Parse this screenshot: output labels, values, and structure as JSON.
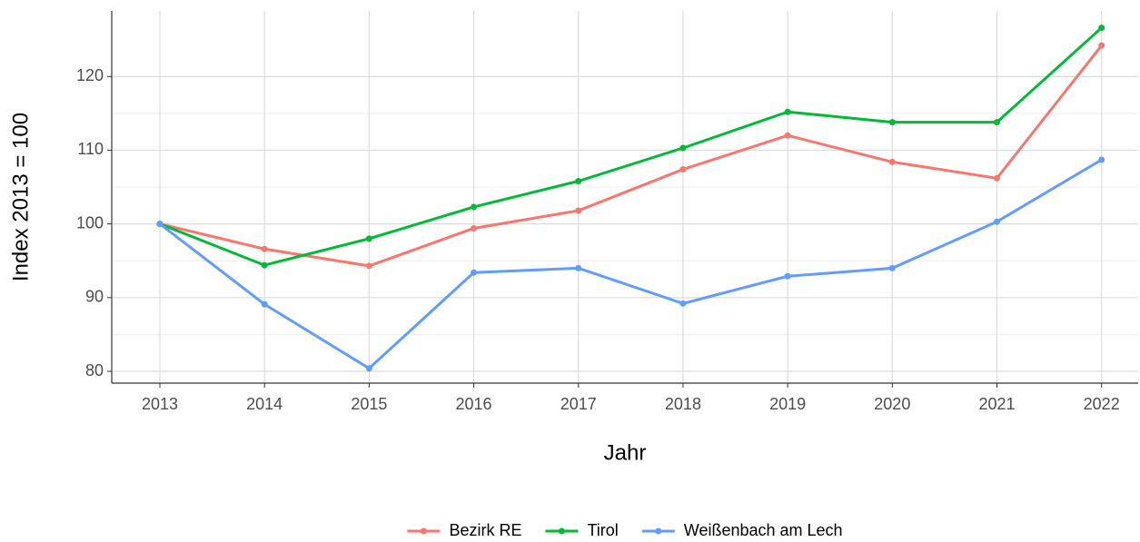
{
  "chart_data": {
    "type": "line",
    "x_label": "Jahr",
    "y_label": "Index  2013  = 100",
    "x": [
      2013,
      2014,
      2015,
      2016,
      2017,
      2018,
      2019,
      2020,
      2021,
      2022
    ],
    "series": [
      {
        "name": "Bezirk RE",
        "color": "#F8766D",
        "values": [
          100,
          96.6,
          94.3,
          99.4,
          101.8,
          107.4,
          112.0,
          108.4,
          106.2,
          124.2
        ]
      },
      {
        "name": "Tirol",
        "color": "#00BA38",
        "values": [
          100,
          94.4,
          98.0,
          102.3,
          105.8,
          110.3,
          115.2,
          113.8,
          113.8,
          126.6
        ]
      },
      {
        "name": "Weißenbach am Lech",
        "color": "#619CFF",
        "values": [
          100,
          89.1,
          80.4,
          93.4,
          94.0,
          89.2,
          92.9,
          94.0,
          100.3,
          108.7
        ]
      }
    ],
    "xlim": [
      2012.54,
      2022.35
    ],
    "xticks": [
      2013,
      2014,
      2015,
      2016,
      2017,
      2018,
      2019,
      2020,
      2021,
      2022
    ],
    "ylim": [
      78.4,
      128.9
    ],
    "yticks": [
      80,
      90,
      100,
      110,
      120
    ],
    "grid": true,
    "legend": "bottom"
  }
}
